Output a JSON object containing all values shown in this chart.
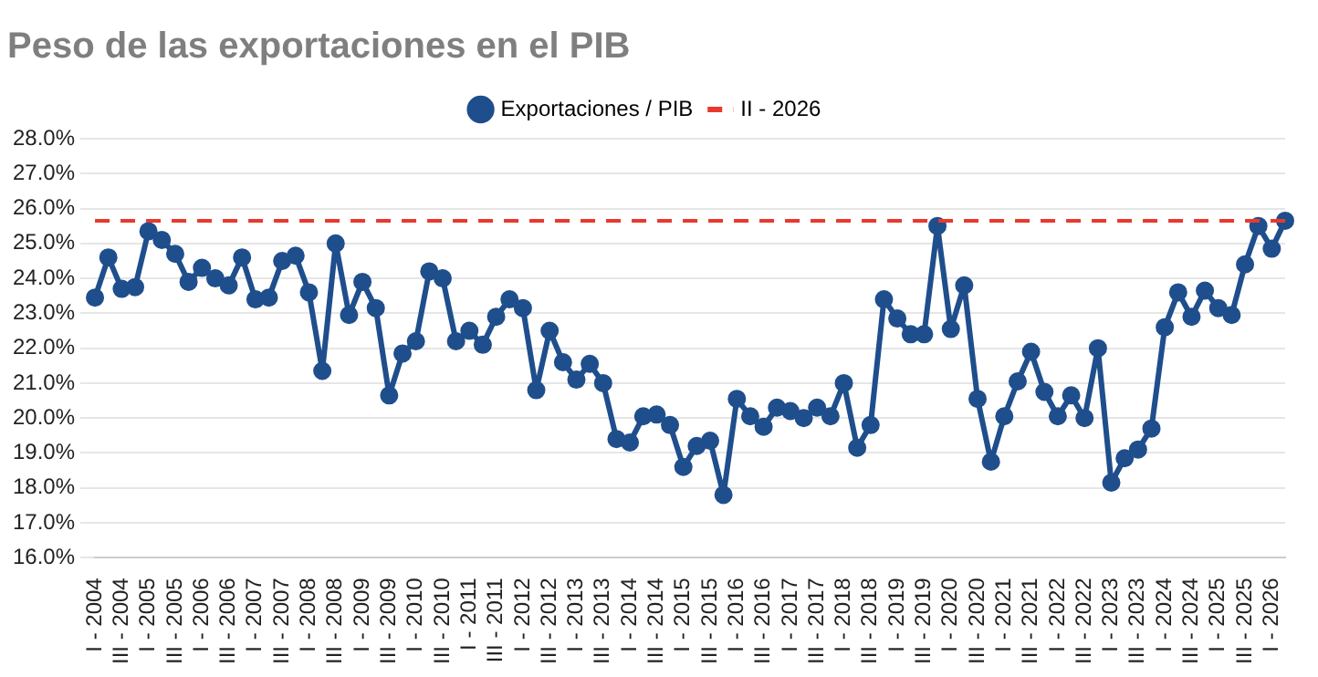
{
  "chart_data": {
    "type": "line",
    "title": "Peso de las exportaciones en el PIB",
    "categories": [
      "I - 2004",
      null,
      "III - 2004",
      null,
      "I - 2005",
      null,
      "III - 2005",
      null,
      "I - 2006",
      null,
      "III - 2006",
      null,
      "I - 2007",
      null,
      "III - 2007",
      null,
      "I - 2008",
      null,
      "III - 2008",
      null,
      "I - 2009",
      null,
      "III - 2009",
      null,
      "I - 2010",
      null,
      "III - 2010",
      null,
      "I - 2011",
      null,
      "III - 2011",
      null,
      "I - 2012",
      null,
      "III - 2012",
      null,
      "I - 2013",
      null,
      "III - 2013",
      null,
      "I - 2014",
      null,
      "III - 2014",
      null,
      "I - 2015",
      null,
      "III - 2015",
      null,
      "I - 2016",
      null,
      "III - 2016",
      null,
      "I - 2017",
      null,
      "III - 2017",
      null,
      "I - 2018",
      null,
      "III - 2018",
      null,
      "I - 2019",
      null,
      "III - 2019",
      null,
      "I - 2020",
      null,
      "III - 2020",
      null,
      "I - 2021",
      null,
      "III - 2021",
      null,
      "I - 2022",
      null,
      "III - 2022",
      null,
      "I - 2023",
      null,
      "III - 2023",
      null,
      "I - 2024",
      null,
      "III - 2024",
      null,
      "I - 2025",
      null,
      "III - 2025",
      null,
      "I - 2026",
      null
    ],
    "series": [
      {
        "name": "Exportaciones / PIB",
        "color": "#1f4e8c",
        "values": [
          23.45,
          24.6,
          23.7,
          23.75,
          25.35,
          25.1,
          24.7,
          23.9,
          24.3,
          24.0,
          23.8,
          24.6,
          23.4,
          23.45,
          24.5,
          24.65,
          23.6,
          21.35,
          25.0,
          22.95,
          23.9,
          23.15,
          20.65,
          21.85,
          22.2,
          24.2,
          24.0,
          22.2,
          22.5,
          22.1,
          22.9,
          23.4,
          23.15,
          20.8,
          22.5,
          21.6,
          21.1,
          21.55,
          21.0,
          19.4,
          19.3,
          20.05,
          20.1,
          19.8,
          18.6,
          19.2,
          19.35,
          17.8,
          20.55,
          20.05,
          19.75,
          20.3,
          20.2,
          20.0,
          20.3,
          20.05,
          21.0,
          19.15,
          19.8,
          23.4,
          22.85,
          22.4,
          22.4,
          25.5,
          22.55,
          23.8,
          20.55,
          18.75,
          20.05,
          21.05,
          21.9,
          20.75,
          20.05,
          20.65,
          20.0,
          22.0,
          18.15,
          18.85,
          19.1,
          19.7,
          22.6,
          23.6,
          22.9,
          23.65,
          23.15,
          22.95,
          24.4,
          25.5,
          24.85,
          25.65
        ]
      }
    ],
    "ref_lines": [
      {
        "axis": "y",
        "value": 25.65,
        "label": "II - 2026",
        "color": "#e8392f",
        "line_style": "dashed"
      }
    ],
    "ylim": [
      16,
      28
    ],
    "yticks": [
      {
        "value": 16,
        "label": "16.0%"
      },
      {
        "value": 17,
        "label": "17.0%"
      },
      {
        "value": 18,
        "label": "18.0%"
      },
      {
        "value": 19,
        "label": "19.0%"
      },
      {
        "value": 20,
        "label": "20.0%"
      },
      {
        "value": 21,
        "label": "21.0%"
      },
      {
        "value": 22,
        "label": "22.0%"
      },
      {
        "value": 23,
        "label": "23.0%"
      },
      {
        "value": 24,
        "label": "24.0%"
      },
      {
        "value": 25,
        "label": "25.0%"
      },
      {
        "value": 26,
        "label": "26.0%"
      },
      {
        "value": 27,
        "label": "27.0%"
      },
      {
        "value": 28,
        "label": "28.0%"
      }
    ],
    "grid": "y",
    "legend": "top",
    "marker": "circle",
    "line_style": "solid"
  }
}
